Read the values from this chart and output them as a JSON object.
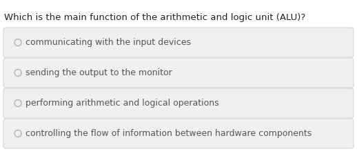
{
  "question": "Which is the main function of the arithmetic and logic unit (ALU)?",
  "options": [
    "communicating with the input devices",
    "sending the output to the monitor",
    "performing arithmetic and logical operations",
    "controlling the flow of information between hardware components"
  ],
  "background_color": "#ffffff",
  "box_facecolor": "#f0f0f0",
  "box_edgecolor": "#d0d0d0",
  "question_color": "#222222",
  "option_text_color": "#555555",
  "radio_edge_color": "#b0b0b0",
  "question_fontsize": 9.5,
  "option_fontsize": 9.0
}
